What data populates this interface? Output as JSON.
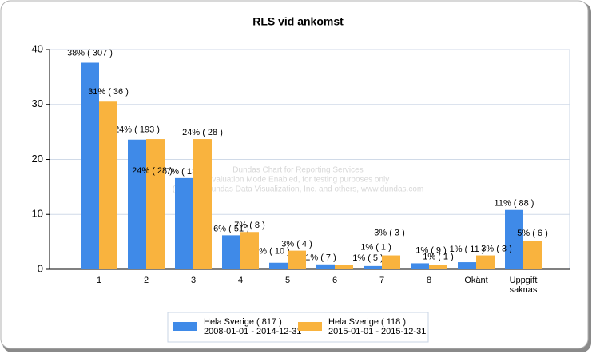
{
  "chart_data": {
    "type": "bar",
    "title": "RLS vid ankomst",
    "categories": [
      "1",
      "2",
      "3",
      "4",
      "5",
      "6",
      "7",
      "8",
      "Okänt",
      "Uppgift saknas"
    ],
    "series": [
      {
        "name": "Hela Sverige  ( 817 )",
        "period": "2008-01-01 - 2014-12-31",
        "color": "#3f8ae8",
        "values": [
          37.6,
          23.6,
          16.6,
          6.2,
          1.2,
          0.9,
          0.6,
          1.1,
          1.3,
          10.8
        ],
        "value_labels": [
          "38% ( 307 )",
          "24% ( 193 )",
          "17% ( 136 )",
          "6% ( 51 )",
          "1% ( 10 )",
          "1% ( 7 )",
          "1% ( 5 )",
          "1% ( 9 )",
          "1% ( 11 )",
          "11% ( 88 )"
        ]
      },
      {
        "name": "Hela Sverige  ( 118 )",
        "period": "2015-01-01 - 2015-12-31",
        "color": "#f9b33e",
        "values": [
          30.51,
          23.7,
          23.7,
          6.8,
          3.4,
          0.8,
          2.54,
          0.8,
          2.54,
          5.1
        ],
        "value_labels": [
          "31% ( 36 )",
          "24% ( 28 )",
          "24% ( 28 )",
          "7% ( 8 )",
          "3% ( 4 )",
          "1% ( 1 )",
          "3% ( 3 )",
          "1% ( 1 )",
          "3% ( 3 )",
          "5% ( 6 )"
        ]
      }
    ],
    "ylim": [
      0,
      40
    ],
    "yticks": [
      0,
      10,
      20,
      30,
      40
    ],
    "grid": true,
    "watermark": [
      "Dundas Chart for Reporting Services",
      "Evaluation Mode Enabled, for testing purposes only",
      "(C) 2009 Dundas Data Visualization, Inc. and others, www.dundas.com"
    ]
  }
}
